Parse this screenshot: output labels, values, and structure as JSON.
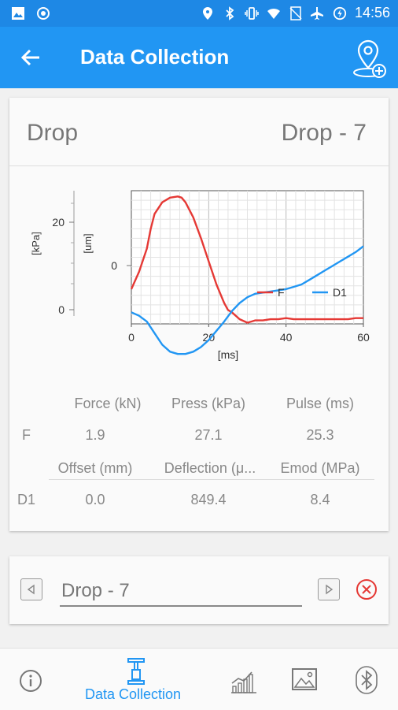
{
  "status_bar": {
    "time": "14:56",
    "left_icons": [
      "image-icon",
      "record-icon"
    ],
    "right_icons": [
      "location-icon",
      "bluetooth-icon",
      "vibrate-icon",
      "wifi-icon",
      "no-sim-icon",
      "airplane-icon",
      "battery-charging-icon"
    ]
  },
  "app_bar": {
    "title": "Data Collection",
    "back_icon": "arrow-left-icon",
    "action_icon": "add-location-icon"
  },
  "drop_card": {
    "left_label": "Drop",
    "right_label": "Drop - 7"
  },
  "chart_data": {
    "type": "line",
    "xlabel": "[ms]",
    "y_left_labels": [
      "[kPa]",
      "[um]"
    ],
    "xlim": [
      0,
      60
    ],
    "x_ticks": [
      "0",
      "20",
      "40",
      "60"
    ],
    "kpa_ticks": [
      "20",
      "0"
    ],
    "um_ticks": [
      "0"
    ],
    "grid": true,
    "legend_placement": "bottom-right",
    "series": [
      {
        "name": "F",
        "color": "#e53935",
        "x": [
          0,
          2,
          4,
          5,
          6,
          8,
          10,
          12,
          13,
          14,
          16,
          18,
          20,
          22,
          24,
          25,
          26,
          28,
          30,
          31,
          32,
          34,
          36,
          38,
          40,
          42,
          44,
          46,
          48,
          50,
          52,
          54,
          56,
          58,
          60
        ],
        "y": [
          0.2,
          0.35,
          0.55,
          0.72,
          0.85,
          0.95,
          0.99,
          1.0,
          0.99,
          0.95,
          0.82,
          0.64,
          0.44,
          0.24,
          0.08,
          0.02,
          0.0,
          -0.06,
          -0.09,
          -0.08,
          -0.07,
          -0.07,
          -0.06,
          -0.06,
          -0.05,
          -0.06,
          -0.06,
          -0.06,
          -0.06,
          -0.06,
          -0.06,
          -0.06,
          -0.06,
          -0.05,
          -0.05
        ]
      },
      {
        "name": "D1",
        "color": "#2196f3",
        "x": [
          0,
          2,
          4,
          6,
          8,
          10,
          12,
          14,
          16,
          18,
          20,
          22,
          24,
          26,
          28,
          30,
          32,
          34,
          36,
          38,
          40,
          42,
          44,
          46,
          48,
          50,
          52,
          54,
          56,
          58,
          60
        ],
        "y": [
          0.0,
          -0.03,
          -0.08,
          -0.18,
          -0.28,
          -0.34,
          -0.36,
          -0.36,
          -0.34,
          -0.3,
          -0.24,
          -0.16,
          -0.08,
          0.01,
          0.08,
          0.13,
          0.16,
          0.17,
          0.18,
          0.19,
          0.2,
          0.22,
          0.24,
          0.28,
          0.32,
          0.36,
          0.4,
          0.44,
          0.48,
          0.52,
          0.57
        ]
      }
    ]
  },
  "results_table": {
    "row1_headers": [
      "Force (kN)",
      "Press (kPa)",
      "Pulse (ms)"
    ],
    "row1_label": "F",
    "row1_values": [
      "1.9",
      "27.1",
      "25.3"
    ],
    "row2_headers": [
      "Offset (mm)",
      "Deflection (μ...",
      "Emod (MPa)"
    ],
    "row2_label": "D1",
    "row2_values": [
      "0.0",
      "849.4",
      "8.4"
    ]
  },
  "drop_selector": {
    "value": "Drop - 7",
    "prev_icon": "triangle-left-icon",
    "next_icon": "triangle-right-icon",
    "clear_icon": "close-circle-icon"
  },
  "bottom_nav": {
    "items": [
      {
        "icon": "info-icon",
        "label": ""
      },
      {
        "icon": "drop-weight-icon",
        "label": "Data Collection",
        "active": true
      },
      {
        "icon": "bar-chart-icon",
        "label": ""
      },
      {
        "icon": "image-icon",
        "label": ""
      },
      {
        "icon": "bluetooth-icon",
        "label": ""
      }
    ],
    "active_color": "#2196f3"
  }
}
